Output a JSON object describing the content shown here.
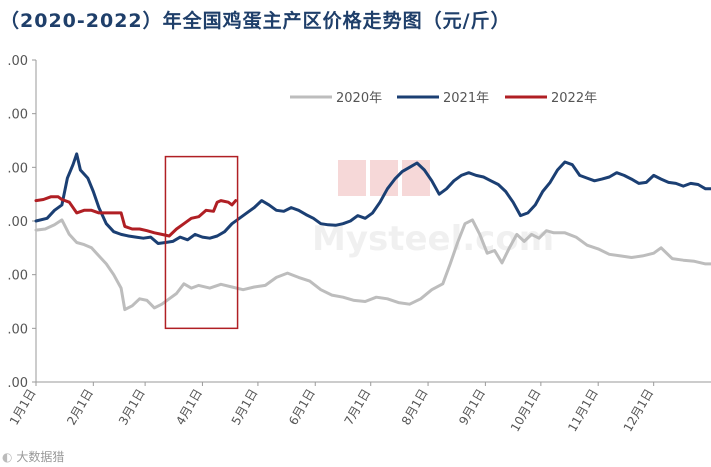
{
  "title": "（2020-2022）年全国鸡蛋主产区价格走势图（元/斤）",
  "footer_badge": "大数据猎",
  "colors": {
    "2020年": "#bdbdbd",
    "2021年": "#1b3f73",
    "2022年": "#b01f24",
    "highlight_box": "#b01f24",
    "axis": "#9a9a9a"
  },
  "chart_data": {
    "type": "line",
    "title": "（2020-2022）年全国鸡蛋主产区价格走势图（元/斤）",
    "xlabel": "",
    "ylabel": "",
    "x_tick_labels": [
      "1月1日",
      "2月1日",
      "3月1日",
      "4月1日",
      "5月1日",
      "6月1日",
      "7月1日",
      "8月1日",
      "9月1日",
      "10月1日",
      "11月1日",
      "12月1日"
    ],
    "y_tick_labels": [
      ".00",
      ".00",
      ".00",
      ".00",
      ".00",
      ".00",
      ".00"
    ],
    "ylim": [
      0,
      6
    ],
    "y_tick_values": [
      0,
      1,
      2,
      3,
      4,
      5,
      6
    ],
    "x_unit": "days since Jan 1",
    "xlim": [
      0,
      365
    ],
    "legend": {
      "placement": "top-right",
      "entries": [
        "2020年",
        "2021年",
        "2022年"
      ]
    },
    "series": [
      {
        "name": "2020年",
        "color": "#bdbdbd",
        "points": [
          [
            0,
            2.83
          ],
          [
            5,
            2.85
          ],
          [
            10,
            2.93
          ],
          [
            14,
            3.02
          ],
          [
            18,
            2.75
          ],
          [
            22,
            2.6
          ],
          [
            26,
            2.56
          ],
          [
            30,
            2.5
          ],
          [
            34,
            2.35
          ],
          [
            38,
            2.2
          ],
          [
            42,
            2.0
          ],
          [
            46,
            1.75
          ],
          [
            48,
            1.35
          ],
          [
            52,
            1.42
          ],
          [
            56,
            1.55
          ],
          [
            60,
            1.52
          ],
          [
            64,
            1.38
          ],
          [
            68,
            1.45
          ],
          [
            72,
            1.55
          ],
          [
            76,
            1.65
          ],
          [
            80,
            1.83
          ],
          [
            84,
            1.75
          ],
          [
            88,
            1.8
          ],
          [
            94,
            1.75
          ],
          [
            100,
            1.82
          ],
          [
            106,
            1.77
          ],
          [
            112,
            1.72
          ],
          [
            118,
            1.77
          ],
          [
            124,
            1.8
          ],
          [
            130,
            1.95
          ],
          [
            136,
            2.03
          ],
          [
            142,
            1.95
          ],
          [
            148,
            1.88
          ],
          [
            154,
            1.72
          ],
          [
            160,
            1.62
          ],
          [
            166,
            1.58
          ],
          [
            172,
            1.52
          ],
          [
            178,
            1.5
          ],
          [
            184,
            1.58
          ],
          [
            190,
            1.55
          ],
          [
            196,
            1.48
          ],
          [
            202,
            1.45
          ],
          [
            208,
            1.55
          ],
          [
            214,
            1.72
          ],
          [
            220,
            1.83
          ],
          [
            224,
            2.2
          ],
          [
            228,
            2.6
          ],
          [
            232,
            2.95
          ],
          [
            236,
            3.02
          ],
          [
            240,
            2.75
          ],
          [
            244,
            2.4
          ],
          [
            248,
            2.45
          ],
          [
            252,
            2.22
          ],
          [
            256,
            2.5
          ],
          [
            260,
            2.75
          ],
          [
            264,
            2.62
          ],
          [
            268,
            2.75
          ],
          [
            272,
            2.68
          ],
          [
            276,
            2.82
          ],
          [
            280,
            2.78
          ],
          [
            286,
            2.78
          ],
          [
            292,
            2.7
          ],
          [
            298,
            2.55
          ],
          [
            304,
            2.48
          ],
          [
            310,
            2.38
          ],
          [
            316,
            2.35
          ],
          [
            322,
            2.32
          ],
          [
            328,
            2.35
          ],
          [
            334,
            2.4
          ],
          [
            338,
            2.5
          ],
          [
            344,
            2.3
          ],
          [
            350,
            2.27
          ],
          [
            356,
            2.25
          ],
          [
            362,
            2.2
          ],
          [
            365,
            2.2
          ]
        ]
      },
      {
        "name": "2021年",
        "color": "#1b3f73",
        "points": [
          [
            0,
            3.0
          ],
          [
            6,
            3.05
          ],
          [
            10,
            3.2
          ],
          [
            14,
            3.3
          ],
          [
            17,
            3.8
          ],
          [
            20,
            4.05
          ],
          [
            22,
            4.25
          ],
          [
            24,
            3.95
          ],
          [
            28,
            3.8
          ],
          [
            31,
            3.55
          ],
          [
            34,
            3.25
          ],
          [
            38,
            2.95
          ],
          [
            42,
            2.8
          ],
          [
            46,
            2.75
          ],
          [
            50,
            2.72
          ],
          [
            54,
            2.7
          ],
          [
            58,
            2.68
          ],
          [
            62,
            2.7
          ],
          [
            66,
            2.58
          ],
          [
            70,
            2.6
          ],
          [
            74,
            2.62
          ],
          [
            78,
            2.7
          ],
          [
            82,
            2.65
          ],
          [
            86,
            2.75
          ],
          [
            90,
            2.7
          ],
          [
            94,
            2.68
          ],
          [
            98,
            2.72
          ],
          [
            102,
            2.8
          ],
          [
            106,
            2.95
          ],
          [
            110,
            3.05
          ],
          [
            114,
            3.15
          ],
          [
            118,
            3.25
          ],
          [
            122,
            3.38
          ],
          [
            126,
            3.3
          ],
          [
            130,
            3.2
          ],
          [
            134,
            3.18
          ],
          [
            138,
            3.25
          ],
          [
            142,
            3.2
          ],
          [
            146,
            3.12
          ],
          [
            150,
            3.05
          ],
          [
            154,
            2.95
          ],
          [
            158,
            2.93
          ],
          [
            162,
            2.92
          ],
          [
            166,
            2.95
          ],
          [
            170,
            3.0
          ],
          [
            174,
            3.1
          ],
          [
            178,
            3.05
          ],
          [
            182,
            3.15
          ],
          [
            186,
            3.35
          ],
          [
            190,
            3.6
          ],
          [
            194,
            3.78
          ],
          [
            198,
            3.92
          ],
          [
            202,
            4.0
          ],
          [
            206,
            4.08
          ],
          [
            210,
            3.95
          ],
          [
            214,
            3.75
          ],
          [
            218,
            3.5
          ],
          [
            222,
            3.6
          ],
          [
            226,
            3.75
          ],
          [
            230,
            3.85
          ],
          [
            234,
            3.9
          ],
          [
            238,
            3.85
          ],
          [
            242,
            3.82
          ],
          [
            246,
            3.75
          ],
          [
            250,
            3.68
          ],
          [
            254,
            3.55
          ],
          [
            258,
            3.35
          ],
          [
            262,
            3.1
          ],
          [
            266,
            3.15
          ],
          [
            270,
            3.3
          ],
          [
            274,
            3.55
          ],
          [
            278,
            3.72
          ],
          [
            282,
            3.95
          ],
          [
            286,
            4.1
          ],
          [
            290,
            4.05
          ],
          [
            294,
            3.85
          ],
          [
            298,
            3.8
          ],
          [
            302,
            3.75
          ],
          [
            306,
            3.78
          ],
          [
            310,
            3.82
          ],
          [
            314,
            3.9
          ],
          [
            318,
            3.85
          ],
          [
            322,
            3.78
          ],
          [
            326,
            3.7
          ],
          [
            330,
            3.72
          ],
          [
            334,
            3.85
          ],
          [
            338,
            3.78
          ],
          [
            342,
            3.72
          ],
          [
            346,
            3.7
          ],
          [
            350,
            3.65
          ],
          [
            354,
            3.7
          ],
          [
            358,
            3.68
          ],
          [
            362,
            3.6
          ],
          [
            365,
            3.6
          ]
        ]
      },
      {
        "name": "2022年",
        "color": "#b01f24",
        "points": [
          [
            0,
            3.38
          ],
          [
            4,
            3.4
          ],
          [
            8,
            3.45
          ],
          [
            12,
            3.45
          ],
          [
            14,
            3.4
          ],
          [
            18,
            3.35
          ],
          [
            22,
            3.15
          ],
          [
            26,
            3.2
          ],
          [
            30,
            3.2
          ],
          [
            34,
            3.15
          ],
          [
            38,
            3.15
          ],
          [
            42,
            3.15
          ],
          [
            46,
            3.15
          ],
          [
            48,
            2.9
          ],
          [
            52,
            2.85
          ],
          [
            56,
            2.85
          ],
          [
            60,
            2.82
          ],
          [
            64,
            2.78
          ],
          [
            68,
            2.75
          ],
          [
            72,
            2.72
          ],
          [
            76,
            2.85
          ],
          [
            80,
            2.95
          ],
          [
            84,
            3.05
          ],
          [
            88,
            3.08
          ],
          [
            92,
            3.2
          ],
          [
            96,
            3.18
          ],
          [
            98,
            3.35
          ],
          [
            100,
            3.38
          ],
          [
            104,
            3.35
          ],
          [
            106,
            3.3
          ],
          [
            108,
            3.38
          ]
        ]
      }
    ],
    "annotation": {
      "type": "rect",
      "x_range": [
        70,
        109
      ],
      "y_range": [
        1.0,
        4.2
      ]
    }
  }
}
